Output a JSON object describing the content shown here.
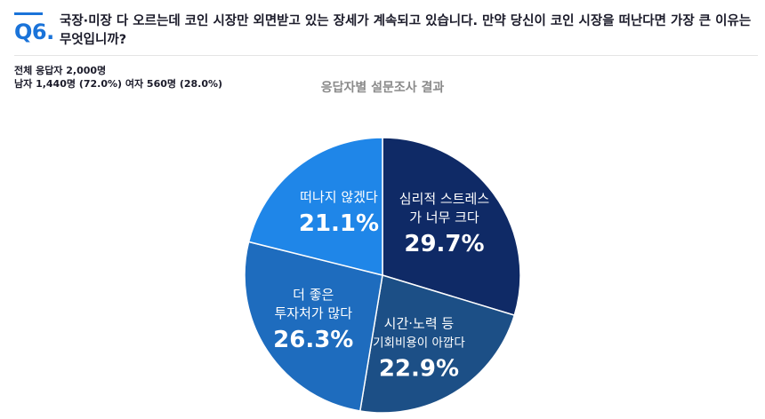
{
  "question": {
    "number": "Q6.",
    "text": "국장·미장 다 오르는데 코인 시장만 외면받고 있는 장세가 계속되고 있습니다. 만약 당신이 코인 시장을 떠난다면 가장 큰 이유는 무엇입니까?"
  },
  "meta": {
    "total": "전체 응답자 2,000명",
    "breakdown": "남자 1,440명 (72.0%) 여자 560명 (28.0%)"
  },
  "chart_data": {
    "type": "pie",
    "title": "응답자별 설문조사 결과",
    "slices": [
      {
        "label_lines": [
          "심리적 스트레스",
          "가 너무 크다"
        ],
        "value": 29.7,
        "value_text": "29.7%",
        "color": "#0f2a66"
      },
      {
        "label_lines": [
          "시간·노력 등",
          "기회비용이 아깝다"
        ],
        "value": 22.9,
        "value_text": "22.9%",
        "color": "#1c4f86"
      },
      {
        "label_lines": [
          "더 좋은",
          "투자처가 많다"
        ],
        "value": 26.3,
        "value_text": "26.3%",
        "color": "#1e6cbe"
      },
      {
        "label_lines": [
          "떠나지 않겠다"
        ],
        "value": 21.1,
        "value_text": "21.1%",
        "color": "#1f86e8"
      }
    ]
  }
}
